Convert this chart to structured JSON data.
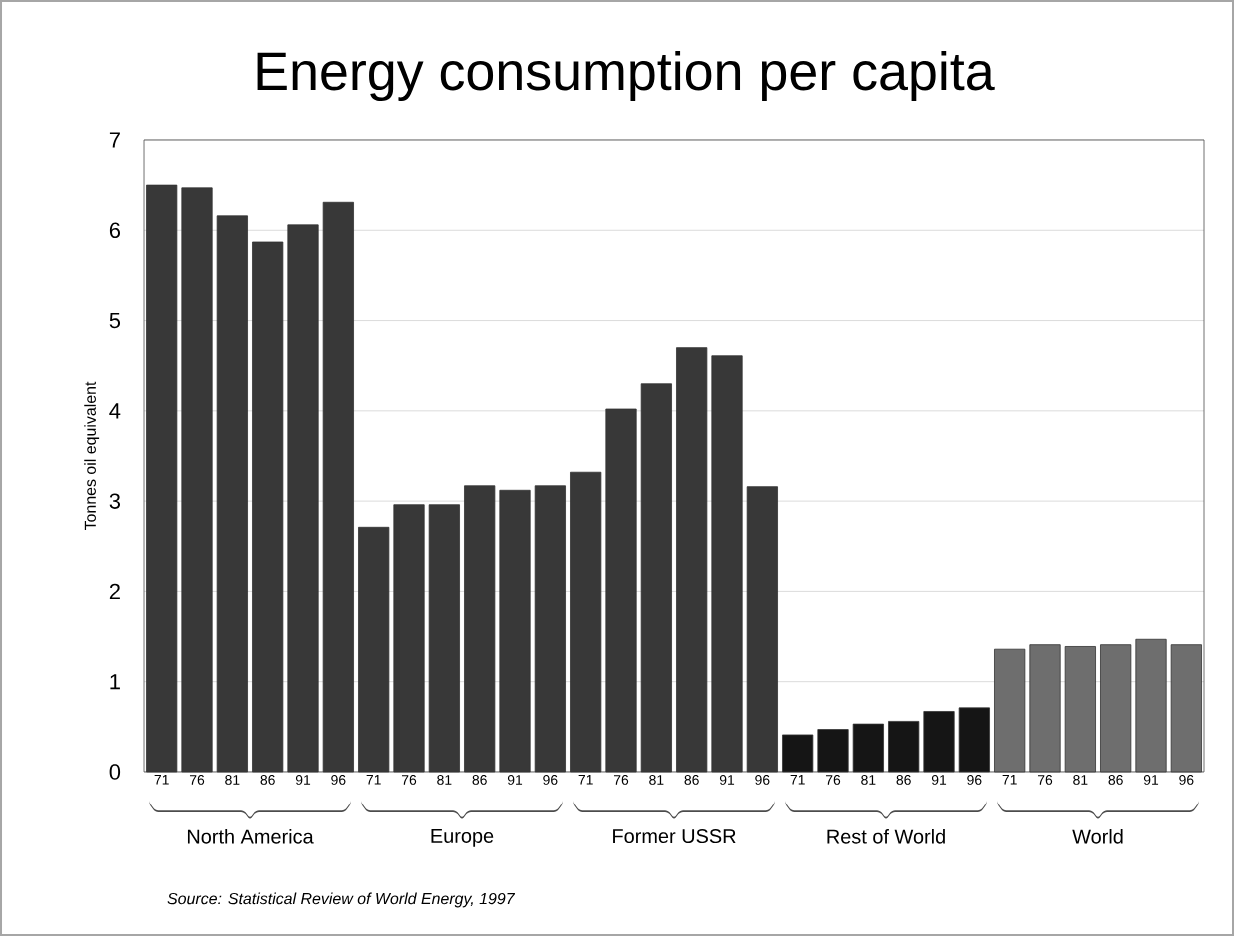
{
  "chart_data": {
    "type": "bar",
    "title": "Energy consumption per capita",
    "ylabel": "Tonnes oil equivalent",
    "categories": [
      "71",
      "76",
      "81",
      "86",
      "91",
      "96",
      "71",
      "76",
      "81",
      "86",
      "91",
      "96",
      "71",
      "76",
      "81",
      "86",
      "91",
      "96",
      "71",
      "76",
      "81",
      "86",
      "91",
      "96",
      "71",
      "76",
      "81",
      "86",
      "91",
      "96"
    ],
    "values": [
      6.5,
      6.47,
      6.16,
      5.87,
      6.06,
      6.31,
      2.71,
      2.96,
      2.96,
      3.17,
      3.12,
      3.17,
      3.32,
      4.02,
      4.3,
      4.7,
      4.61,
      3.16,
      0.41,
      0.47,
      0.53,
      0.56,
      0.67,
      0.71,
      1.36,
      1.41,
      1.39,
      1.41,
      1.47,
      1.41
    ],
    "colors": [
      "#383838",
      "#383838",
      "#383838",
      "#383838",
      "#383838",
      "#383838",
      "#383838",
      "#383838",
      "#383838",
      "#383838",
      "#383838",
      "#383838",
      "#383838",
      "#383838",
      "#383838",
      "#383838",
      "#383838",
      "#383838",
      "#151515",
      "#151515",
      "#151515",
      "#151515",
      "#151515",
      "#151515",
      "#6e6e6e",
      "#6e6e6e",
      "#6e6e6e",
      "#6e6e6e",
      "#6e6e6e",
      "#6e6e6e"
    ],
    "ylim": [
      0,
      7
    ],
    "yticks": [
      0,
      1,
      2,
      3,
      4,
      5,
      6,
      7
    ],
    "grid": "y",
    "annotations": [
      "North America",
      "Europe",
      "Former USSR",
      "Rest of World",
      "World",
      "Source: Statistical Review of World Energy, 1997"
    ]
  }
}
